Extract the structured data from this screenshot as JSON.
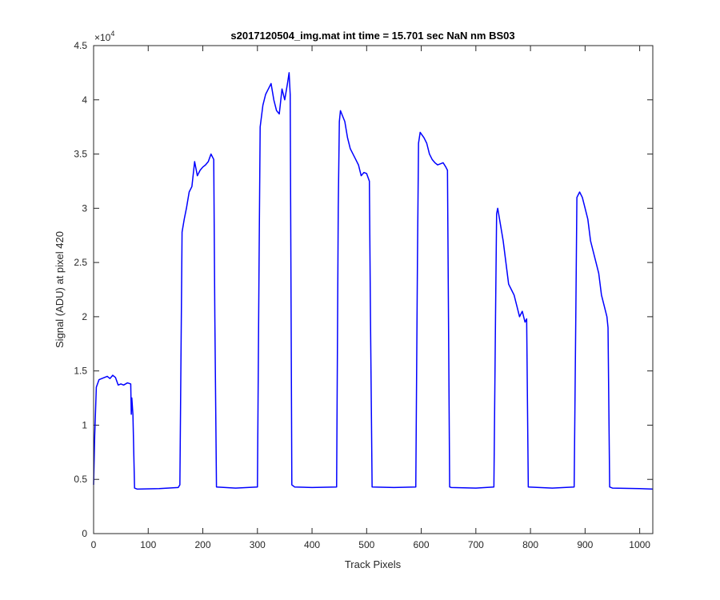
{
  "chart_data": {
    "type": "line",
    "title": "s2017120504_img.mat int time = 15.701 sec  NaN nm BS03",
    "xlabel": "Track Pixels",
    "ylabel": "Signal (ADU) at pixel 420",
    "y_exponent": {
      "base": "×10",
      "power": "4"
    },
    "color": "#0000ff",
    "xlim": [
      0,
      1024
    ],
    "ylim": [
      0,
      45000
    ],
    "xticks": [
      0,
      100,
      200,
      300,
      400,
      500,
      600,
      700,
      800,
      900,
      1000
    ],
    "yticks": [
      0,
      {
        "value": 5000,
        "label": "0.5"
      },
      {
        "value": 10000,
        "label": "1"
      },
      {
        "value": 15000,
        "label": "1.5"
      },
      {
        "value": 20000,
        "label": "2"
      },
      {
        "value": 25000,
        "label": "2.5"
      },
      {
        "value": 30000,
        "label": "3"
      },
      {
        "value": 35000,
        "label": "3.5"
      },
      {
        "value": 40000,
        "label": "4"
      },
      {
        "value": 45000,
        "label": "4.5"
      }
    ],
    "x": [
      0,
      2,
      5,
      10,
      15,
      20,
      25,
      30,
      35,
      40,
      45,
      50,
      55,
      62,
      68,
      69,
      70,
      72,
      75,
      80,
      120,
      155,
      158,
      162,
      166,
      170,
      175,
      180,
      185,
      190,
      195,
      200,
      205,
      210,
      215,
      220,
      222,
      225,
      260,
      300,
      303,
      305,
      310,
      315,
      320,
      325,
      330,
      335,
      340,
      345,
      350,
      355,
      358,
      360,
      363,
      368,
      400,
      445,
      448,
      450,
      452,
      456,
      460,
      465,
      470,
      475,
      480,
      485,
      490,
      495,
      500,
      505,
      507,
      510,
      550,
      590,
      593,
      595,
      598,
      605,
      610,
      615,
      620,
      625,
      630,
      635,
      640,
      645,
      648,
      652,
      655,
      700,
      733,
      736,
      738,
      740,
      745,
      750,
      755,
      760,
      765,
      770,
      775,
      780,
      785,
      790,
      793,
      796,
      840,
      880,
      883,
      885,
      890,
      895,
      900,
      905,
      910,
      915,
      920,
      925,
      930,
      935,
      940,
      942,
      945,
      950,
      1000,
      1024
    ],
    "values": [
      4500,
      9000,
      13500,
      14200,
      14300,
      14400,
      14500,
      14300,
      14600,
      14400,
      13700,
      13800,
      13700,
      13900,
      13800,
      11000,
      12500,
      11000,
      4200,
      4100,
      4150,
      4250,
      4500,
      27800,
      29000,
      30000,
      31500,
      32000,
      34300,
      33000,
      33500,
      33800,
      34000,
      34300,
      35000,
      34500,
      20000,
      4300,
      4200,
      4300,
      25000,
      37500,
      39500,
      40500,
      41000,
      41500,
      40000,
      39000,
      38700,
      41000,
      40000,
      41500,
      42500,
      40500,
      4500,
      4300,
      4250,
      4300,
      30000,
      38000,
      39000,
      38500,
      38000,
      36500,
      35500,
      35000,
      34500,
      34000,
      33000,
      33300,
      33200,
      32500,
      20000,
      4300,
      4250,
      4300,
      25000,
      36000,
      37000,
      36500,
      36000,
      35000,
      34500,
      34200,
      34000,
      34100,
      34200,
      33800,
      33500,
      4300,
      4250,
      4200,
      4300,
      20000,
      29500,
      30000,
      28500,
      27000,
      25000,
      23000,
      22500,
      22000,
      21000,
      20000,
      20500,
      19500,
      19800,
      4300,
      4200,
      4300,
      20000,
      31000,
      31500,
      31000,
      30000,
      29000,
      27000,
      26000,
      25000,
      24000,
      22000,
      21000,
      20000,
      19000,
      4300,
      4200,
      4150,
      4100
    ]
  }
}
